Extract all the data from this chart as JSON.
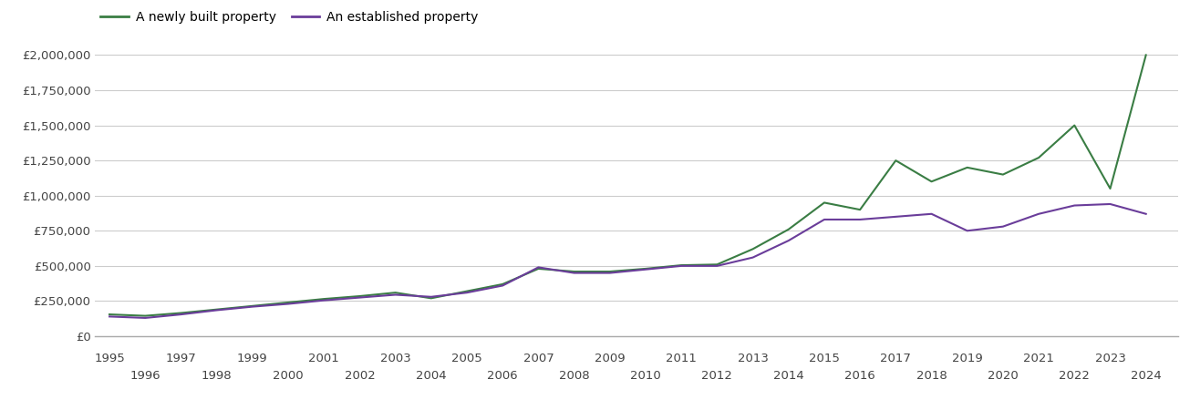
{
  "newly_built": {
    "years": [
      1995,
      1996,
      1997,
      1998,
      1999,
      2000,
      2001,
      2002,
      2003,
      2004,
      2005,
      2006,
      2007,
      2008,
      2009,
      2010,
      2011,
      2012,
      2013,
      2014,
      2015,
      2016,
      2017,
      2018,
      2019,
      2020,
      2021,
      2022,
      2023,
      2024
    ],
    "values": [
      155000,
      145000,
      165000,
      190000,
      215000,
      240000,
      265000,
      285000,
      310000,
      270000,
      320000,
      370000,
      480000,
      460000,
      460000,
      480000,
      505000,
      510000,
      620000,
      760000,
      950000,
      900000,
      1250000,
      1100000,
      1200000,
      1150000,
      1270000,
      1500000,
      1050000,
      2000000
    ]
  },
  "established": {
    "years": [
      1995,
      1996,
      1997,
      1998,
      1999,
      2000,
      2001,
      2002,
      2003,
      2004,
      2005,
      2006,
      2007,
      2008,
      2009,
      2010,
      2011,
      2012,
      2013,
      2014,
      2015,
      2016,
      2017,
      2018,
      2019,
      2020,
      2021,
      2022,
      2023,
      2024
    ],
    "values": [
      140000,
      130000,
      155000,
      185000,
      210000,
      230000,
      255000,
      275000,
      295000,
      280000,
      310000,
      360000,
      490000,
      450000,
      450000,
      475000,
      500000,
      500000,
      560000,
      680000,
      830000,
      830000,
      850000,
      870000,
      750000,
      780000,
      870000,
      930000,
      940000,
      870000
    ]
  },
  "newly_color": "#3a7d44",
  "established_color": "#6a3d9a",
  "background_color": "#ffffff",
  "grid_color": "#cccccc",
  "ytick_labels": [
    "£0",
    "£250,000",
    "£500,000",
    "£750,000",
    "£1,000,000",
    "£1,250,000",
    "£1,500,000",
    "£1,750,000",
    "£2,000,000"
  ],
  "ytick_values": [
    0,
    250000,
    500000,
    750000,
    1000000,
    1250000,
    1500000,
    1750000,
    2000000
  ],
  "ylim": [
    0,
    2100000
  ],
  "xlim_left": 1994.6,
  "xlim_right": 2024.9,
  "legend_newly": "A newly built property",
  "legend_established": "An established property",
  "line_width": 1.5,
  "tick_fontsize": 9.5,
  "legend_fontsize": 10
}
